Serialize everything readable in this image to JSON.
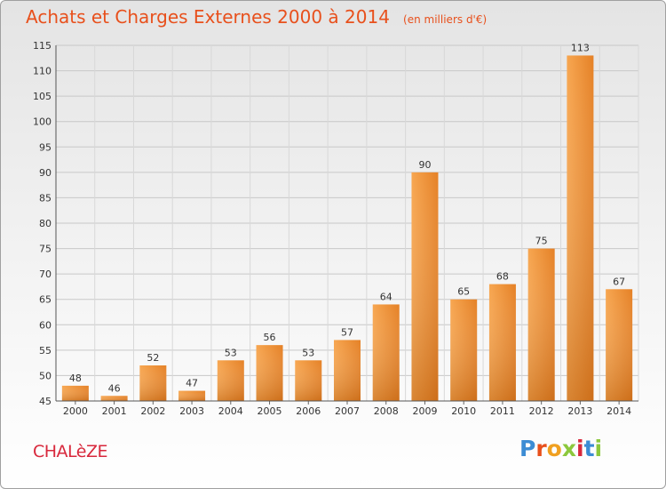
{
  "chart_data": {
    "type": "bar",
    "title": "Achats et Charges Externes 2000 à 2014",
    "subtitle": "(en milliers d'€)",
    "categories": [
      "2000",
      "2001",
      "2002",
      "2003",
      "2004",
      "2005",
      "2006",
      "2007",
      "2008",
      "2009",
      "2010",
      "2011",
      "2012",
      "2013",
      "2014"
    ],
    "values": [
      48,
      46,
      52,
      47,
      53,
      56,
      53,
      57,
      64,
      90,
      65,
      68,
      75,
      113,
      67
    ],
    "ylim": [
      45,
      115
    ],
    "yticks": [
      45,
      50,
      55,
      60,
      65,
      70,
      75,
      80,
      85,
      90,
      95,
      100,
      105,
      110,
      115
    ],
    "grid": true,
    "bar_color": "#f0963c",
    "title_color": "#e8501c"
  },
  "footer": {
    "commune": "CHALèZE",
    "logo": {
      "letters": [
        "P",
        "r",
        "o",
        "x",
        "i",
        "t",
        "i"
      ],
      "colors": [
        "#3c8cd4",
        "#e8501c",
        "#f0a020",
        "#8cc83c",
        "#d8283c",
        "#3c8cd4",
        "#8cc83c"
      ]
    }
  }
}
